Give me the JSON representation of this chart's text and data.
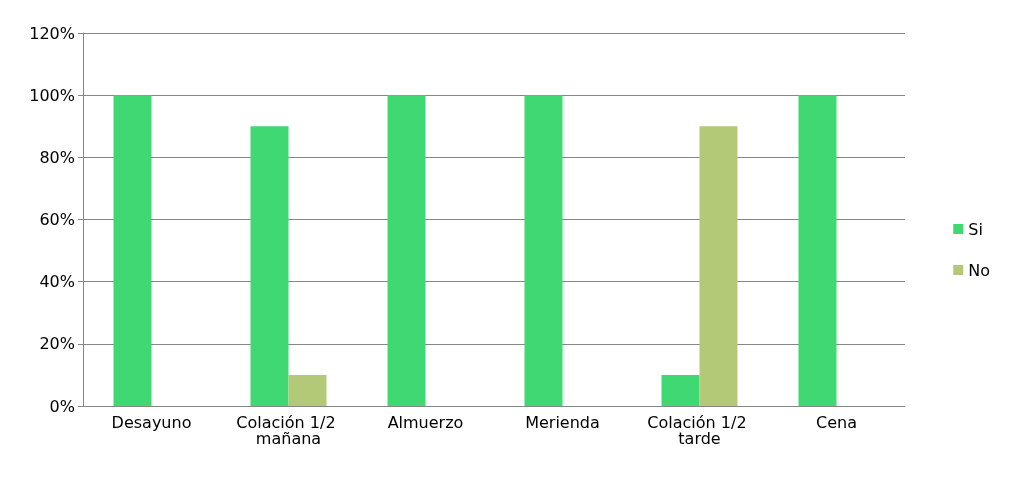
{
  "chart_data": {
    "type": "bar",
    "categories": [
      "Desayuno",
      "Colación 1/2 mañana",
      "Almuerzo",
      "Merienda",
      "Colación 1/2 tarde",
      "Cena"
    ],
    "series": [
      {
        "name": "Si",
        "color": "#3fd873",
        "values": [
          100,
          90,
          100,
          100,
          10,
          100
        ]
      },
      {
        "name": "No",
        "color": "#b3c978",
        "values": [
          0,
          10,
          0,
          0,
          90,
          0
        ]
      }
    ],
    "ylim": [
      0,
      120
    ],
    "yticks": [
      {
        "value": 0,
        "label": "0%"
      },
      {
        "value": 20,
        "label": "20%"
      },
      {
        "value": 40,
        "label": "40%"
      },
      {
        "value": 60,
        "label": "60%"
      },
      {
        "value": 80,
        "label": "80%"
      },
      {
        "value": 100,
        "label": "100%"
      },
      {
        "value": 120,
        "label": "120%"
      }
    ],
    "grid": "y",
    "legend": "right"
  }
}
